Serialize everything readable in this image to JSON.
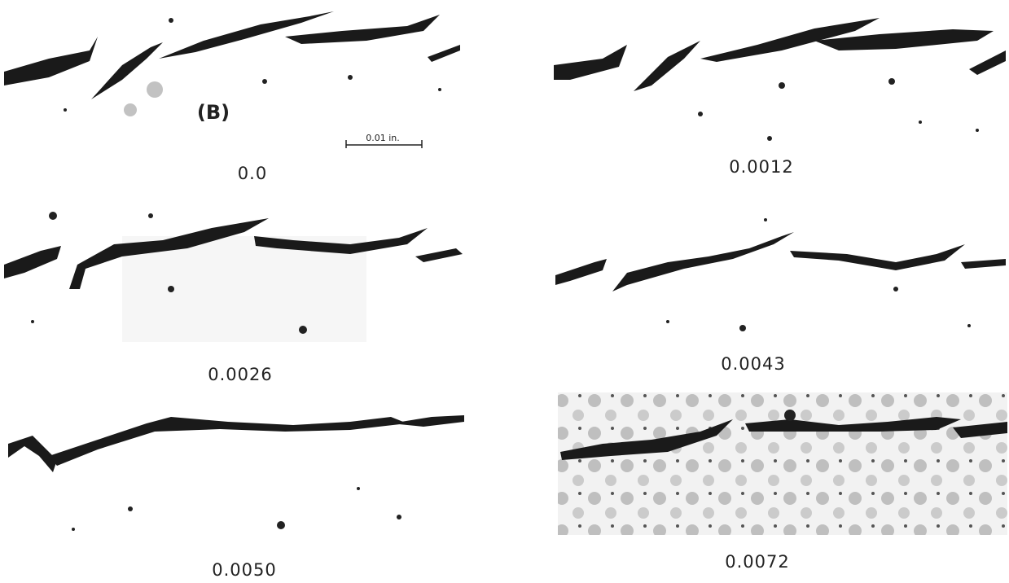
{
  "panels": [
    {
      "label": "0.0"
    },
    {
      "label": "0.0012"
    },
    {
      "label": "0.0026"
    },
    {
      "label": "0.0043"
    },
    {
      "label": "0.0050"
    },
    {
      "label": "0.0072"
    }
  ],
  "annotations": {
    "part": "(B)",
    "scale": "0.01 in."
  }
}
